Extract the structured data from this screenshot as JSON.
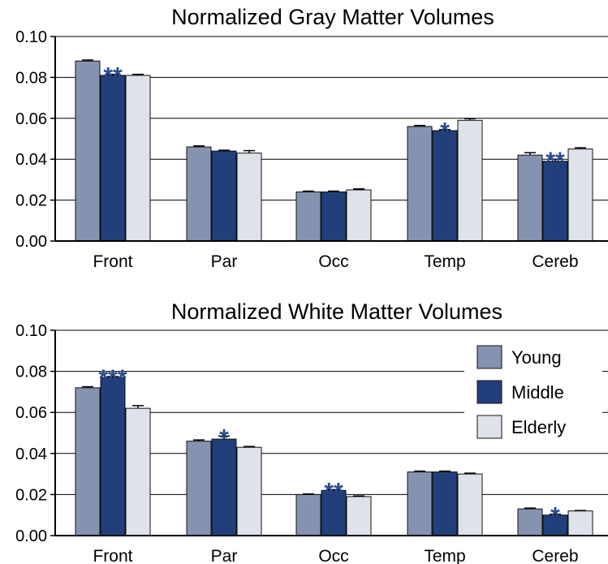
{
  "chart_data": [
    {
      "type": "bar",
      "title": "Normalized Gray Matter Volumes",
      "categories": [
        "Front",
        "Par",
        "Occ",
        "Temp",
        "Cereb"
      ],
      "ylim": [
        0,
        0.1
      ],
      "yticks": [
        "0.00",
        "0.02",
        "0.04",
        "0.06",
        "0.08",
        "0.10"
      ],
      "grid": true,
      "series": [
        {
          "name": "Young",
          "color": "#8593b1",
          "values": [
            0.088,
            0.046,
            0.024,
            0.056,
            0.042
          ],
          "errors": [
            0.0005,
            0.0005,
            0.0004,
            0.0005,
            0.0012
          ]
        },
        {
          "name": "Middle",
          "color": "#213f7a",
          "values": [
            0.081,
            0.044,
            0.024,
            0.054,
            0.039
          ],
          "errors": [
            0.0005,
            0.0004,
            0.0004,
            0.0005,
            0.001
          ]
        },
        {
          "name": "Elderly",
          "color": "#dfe2e9",
          "values": [
            0.081,
            0.043,
            0.025,
            0.059,
            0.045
          ],
          "errors": [
            0.0005,
            0.0012,
            0.0005,
            0.0008,
            0.0006
          ]
        }
      ],
      "annotations": [
        {
          "category": "Front",
          "text": "**"
        },
        {
          "category": "Temp",
          "text": "*"
        },
        {
          "category": "Cereb",
          "text": "**"
        }
      ]
    },
    {
      "type": "bar",
      "title": "Normalized White Matter Volumes",
      "categories": [
        "Front",
        "Par",
        "Occ",
        "Temp",
        "Cereb"
      ],
      "ylim": [
        0,
        0.1
      ],
      "yticks": [
        "0.00",
        "0.02",
        "0.04",
        "0.06",
        "0.08",
        "0.10"
      ],
      "grid": true,
      "legend": "top-right",
      "series": [
        {
          "name": "Young",
          "color": "#8593b1",
          "values": [
            0.072,
            0.046,
            0.02,
            0.031,
            0.013
          ],
          "errors": [
            0.0005,
            0.0006,
            0.0003,
            0.0004,
            0.0004
          ]
        },
        {
          "name": "Middle",
          "color": "#213f7a",
          "values": [
            0.077,
            0.047,
            0.022,
            0.031,
            0.01
          ],
          "errors": [
            0.0005,
            0.0015,
            0.0004,
            0.0004,
            0.0004
          ]
        },
        {
          "name": "Elderly",
          "color": "#dfe2e9",
          "values": [
            0.062,
            0.043,
            0.019,
            0.03,
            0.012
          ],
          "errors": [
            0.0013,
            0.0004,
            0.0003,
            0.0004,
            0.0002
          ]
        }
      ],
      "annotations": [
        {
          "category": "Front",
          "text": "***"
        },
        {
          "category": "Par",
          "text": "*"
        },
        {
          "category": "Occ",
          "text": "**"
        },
        {
          "category": "Cereb",
          "text": "*"
        }
      ]
    }
  ],
  "colors": {
    "star": "#2b4c8c",
    "grid": "#000000",
    "bar_stroke": "#111111"
  }
}
